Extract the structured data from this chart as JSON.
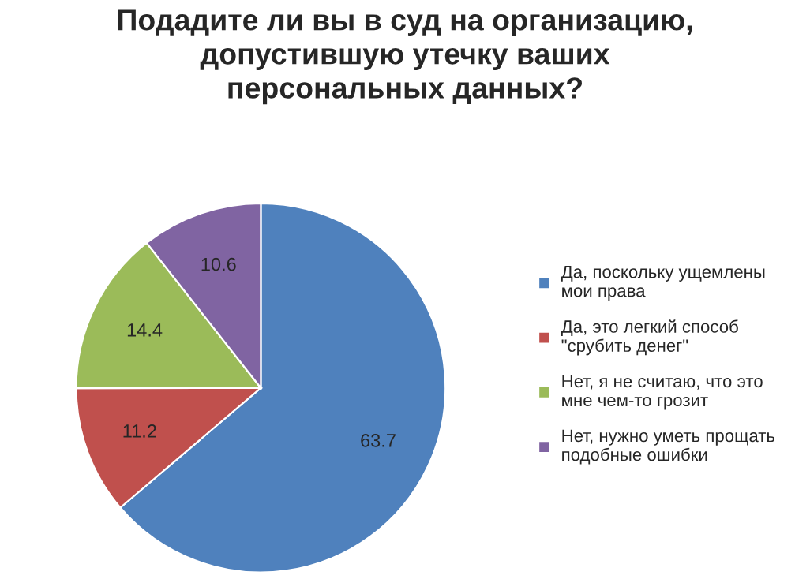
{
  "chart_data": {
    "type": "pie",
    "title": "Подадите ли вы в суд на организацию, допустившую утечку ваших персональных данных?",
    "categories": [
      "Да, поскольку ущемлены мои права",
      "Да, это легкий способ \"срубить денег\"",
      "Нет, я не считаю, что это мне чем-то грозит",
      "Нет, нужно уметь прощать подобные ошибки"
    ],
    "values": [
      63.7,
      11.2,
      14.4,
      10.6
    ],
    "colors": [
      "#4f81bd",
      "#c0504d",
      "#9bbb59",
      "#8064a2"
    ],
    "data_labels": true,
    "legend": "right"
  }
}
